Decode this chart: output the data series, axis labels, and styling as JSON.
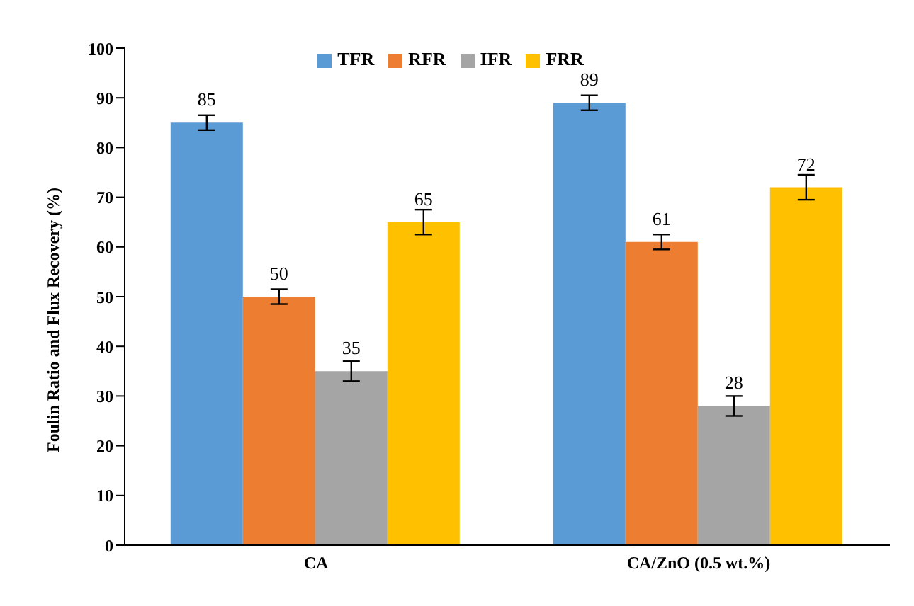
{
  "chart_data": {
    "type": "bar",
    "ylabel": "Foulin Ratio and Flux Recovery (%)",
    "categories": [
      "CA",
      "CA/ZnO (0.5 wt.%)"
    ],
    "series": [
      {
        "name": "TFR",
        "color": "#5b9bd5",
        "values": [
          85,
          89
        ],
        "errors": [
          1.5,
          1.5
        ]
      },
      {
        "name": "RFR",
        "color": "#ed7d31",
        "values": [
          50,
          61
        ],
        "errors": [
          1.5,
          1.5
        ]
      },
      {
        "name": "IFR",
        "color": "#a5a5a5",
        "values": [
          35,
          28
        ],
        "errors": [
          2,
          2
        ]
      },
      {
        "name": "FRR",
        "color": "#ffc000",
        "values": [
          65,
          72
        ],
        "errors": [
          2.5,
          2.5
        ]
      }
    ],
    "ylim": [
      0,
      100
    ],
    "yticks": [
      0,
      10,
      20,
      30,
      40,
      50,
      60,
      70,
      80,
      90,
      100
    ],
    "grid": false,
    "legend": "top",
    "data_labels": true
  }
}
